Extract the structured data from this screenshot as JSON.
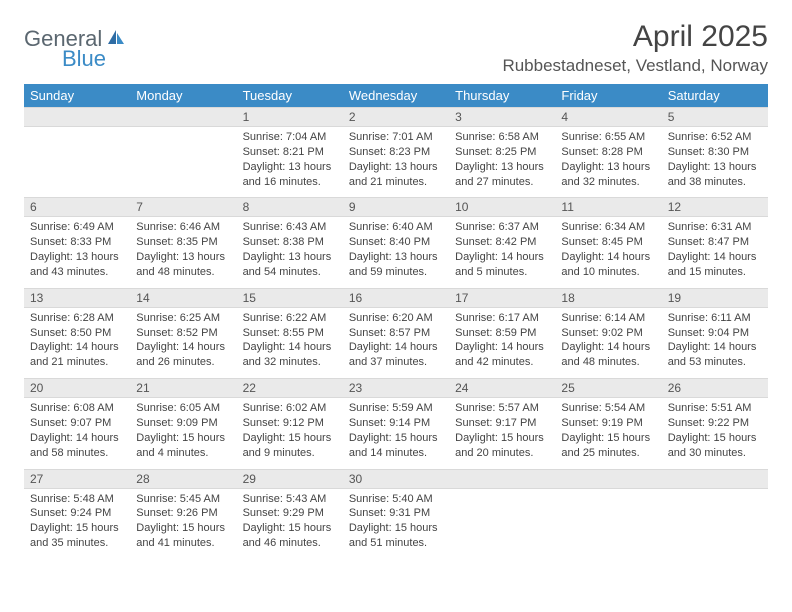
{
  "logo": {
    "text1": "General",
    "text2": "Blue"
  },
  "title": "April 2025",
  "location": "Rubbestadneset, Vestland, Norway",
  "colors": {
    "header_bg": "#3b8bc6",
    "header_text": "#ffffff",
    "daynum_bg": "#eaeaea",
    "text": "#444444",
    "logo_gray": "#5b6770",
    "logo_blue": "#3b8bc6",
    "border": "#d9d9d9",
    "page_bg": "#ffffff"
  },
  "weekdays": [
    "Sunday",
    "Monday",
    "Tuesday",
    "Wednesday",
    "Thursday",
    "Friday",
    "Saturday"
  ],
  "weeks": [
    {
      "nums": [
        "",
        "",
        "1",
        "2",
        "3",
        "4",
        "5"
      ],
      "cells": [
        null,
        null,
        {
          "sr": "Sunrise: 7:04 AM",
          "ss": "Sunset: 8:21 PM",
          "d1": "Daylight: 13 hours",
          "d2": "and 16 minutes."
        },
        {
          "sr": "Sunrise: 7:01 AM",
          "ss": "Sunset: 8:23 PM",
          "d1": "Daylight: 13 hours",
          "d2": "and 21 minutes."
        },
        {
          "sr": "Sunrise: 6:58 AM",
          "ss": "Sunset: 8:25 PM",
          "d1": "Daylight: 13 hours",
          "d2": "and 27 minutes."
        },
        {
          "sr": "Sunrise: 6:55 AM",
          "ss": "Sunset: 8:28 PM",
          "d1": "Daylight: 13 hours",
          "d2": "and 32 minutes."
        },
        {
          "sr": "Sunrise: 6:52 AM",
          "ss": "Sunset: 8:30 PM",
          "d1": "Daylight: 13 hours",
          "d2": "and 38 minutes."
        }
      ]
    },
    {
      "nums": [
        "6",
        "7",
        "8",
        "9",
        "10",
        "11",
        "12"
      ],
      "cells": [
        {
          "sr": "Sunrise: 6:49 AM",
          "ss": "Sunset: 8:33 PM",
          "d1": "Daylight: 13 hours",
          "d2": "and 43 minutes."
        },
        {
          "sr": "Sunrise: 6:46 AM",
          "ss": "Sunset: 8:35 PM",
          "d1": "Daylight: 13 hours",
          "d2": "and 48 minutes."
        },
        {
          "sr": "Sunrise: 6:43 AM",
          "ss": "Sunset: 8:38 PM",
          "d1": "Daylight: 13 hours",
          "d2": "and 54 minutes."
        },
        {
          "sr": "Sunrise: 6:40 AM",
          "ss": "Sunset: 8:40 PM",
          "d1": "Daylight: 13 hours",
          "d2": "and 59 minutes."
        },
        {
          "sr": "Sunrise: 6:37 AM",
          "ss": "Sunset: 8:42 PM",
          "d1": "Daylight: 14 hours",
          "d2": "and 5 minutes."
        },
        {
          "sr": "Sunrise: 6:34 AM",
          "ss": "Sunset: 8:45 PM",
          "d1": "Daylight: 14 hours",
          "d2": "and 10 minutes."
        },
        {
          "sr": "Sunrise: 6:31 AM",
          "ss": "Sunset: 8:47 PM",
          "d1": "Daylight: 14 hours",
          "d2": "and 15 minutes."
        }
      ]
    },
    {
      "nums": [
        "13",
        "14",
        "15",
        "16",
        "17",
        "18",
        "19"
      ],
      "cells": [
        {
          "sr": "Sunrise: 6:28 AM",
          "ss": "Sunset: 8:50 PM",
          "d1": "Daylight: 14 hours",
          "d2": "and 21 minutes."
        },
        {
          "sr": "Sunrise: 6:25 AM",
          "ss": "Sunset: 8:52 PM",
          "d1": "Daylight: 14 hours",
          "d2": "and 26 minutes."
        },
        {
          "sr": "Sunrise: 6:22 AM",
          "ss": "Sunset: 8:55 PM",
          "d1": "Daylight: 14 hours",
          "d2": "and 32 minutes."
        },
        {
          "sr": "Sunrise: 6:20 AM",
          "ss": "Sunset: 8:57 PM",
          "d1": "Daylight: 14 hours",
          "d2": "and 37 minutes."
        },
        {
          "sr": "Sunrise: 6:17 AM",
          "ss": "Sunset: 8:59 PM",
          "d1": "Daylight: 14 hours",
          "d2": "and 42 minutes."
        },
        {
          "sr": "Sunrise: 6:14 AM",
          "ss": "Sunset: 9:02 PM",
          "d1": "Daylight: 14 hours",
          "d2": "and 48 minutes."
        },
        {
          "sr": "Sunrise: 6:11 AM",
          "ss": "Sunset: 9:04 PM",
          "d1": "Daylight: 14 hours",
          "d2": "and 53 minutes."
        }
      ]
    },
    {
      "nums": [
        "20",
        "21",
        "22",
        "23",
        "24",
        "25",
        "26"
      ],
      "cells": [
        {
          "sr": "Sunrise: 6:08 AM",
          "ss": "Sunset: 9:07 PM",
          "d1": "Daylight: 14 hours",
          "d2": "and 58 minutes."
        },
        {
          "sr": "Sunrise: 6:05 AM",
          "ss": "Sunset: 9:09 PM",
          "d1": "Daylight: 15 hours",
          "d2": "and 4 minutes."
        },
        {
          "sr": "Sunrise: 6:02 AM",
          "ss": "Sunset: 9:12 PM",
          "d1": "Daylight: 15 hours",
          "d2": "and 9 minutes."
        },
        {
          "sr": "Sunrise: 5:59 AM",
          "ss": "Sunset: 9:14 PM",
          "d1": "Daylight: 15 hours",
          "d2": "and 14 minutes."
        },
        {
          "sr": "Sunrise: 5:57 AM",
          "ss": "Sunset: 9:17 PM",
          "d1": "Daylight: 15 hours",
          "d2": "and 20 minutes."
        },
        {
          "sr": "Sunrise: 5:54 AM",
          "ss": "Sunset: 9:19 PM",
          "d1": "Daylight: 15 hours",
          "d2": "and 25 minutes."
        },
        {
          "sr": "Sunrise: 5:51 AM",
          "ss": "Sunset: 9:22 PM",
          "d1": "Daylight: 15 hours",
          "d2": "and 30 minutes."
        }
      ]
    },
    {
      "nums": [
        "27",
        "28",
        "29",
        "30",
        "",
        "",
        ""
      ],
      "cells": [
        {
          "sr": "Sunrise: 5:48 AM",
          "ss": "Sunset: 9:24 PM",
          "d1": "Daylight: 15 hours",
          "d2": "and 35 minutes."
        },
        {
          "sr": "Sunrise: 5:45 AM",
          "ss": "Sunset: 9:26 PM",
          "d1": "Daylight: 15 hours",
          "d2": "and 41 minutes."
        },
        {
          "sr": "Sunrise: 5:43 AM",
          "ss": "Sunset: 9:29 PM",
          "d1": "Daylight: 15 hours",
          "d2": "and 46 minutes."
        },
        {
          "sr": "Sunrise: 5:40 AM",
          "ss": "Sunset: 9:31 PM",
          "d1": "Daylight: 15 hours",
          "d2": "and 51 minutes."
        },
        null,
        null,
        null
      ]
    }
  ]
}
